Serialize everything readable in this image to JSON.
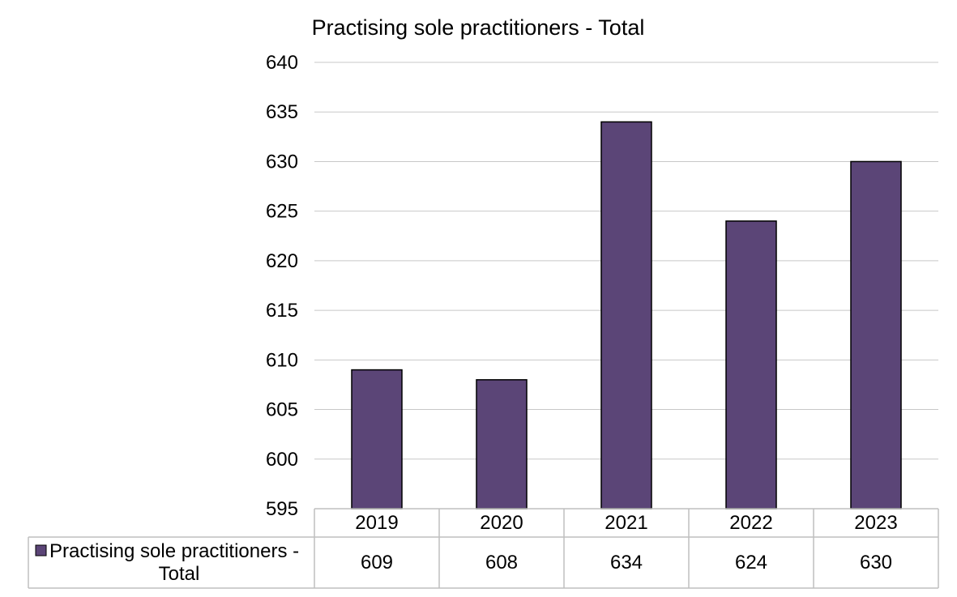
{
  "chart_data": {
    "type": "bar",
    "title": "Practising sole practitioners - Total",
    "categories": [
      "2019",
      "2020",
      "2021",
      "2022",
      "2023"
    ],
    "series": [
      {
        "name": "Practising sole practitioners - Total",
        "values": [
          609,
          608,
          634,
          624,
          630
        ],
        "color": "#5b4577"
      }
    ],
    "ylim": [
      595,
      640
    ],
    "yticks": [
      595,
      600,
      605,
      610,
      615,
      620,
      625,
      630,
      635,
      640
    ],
    "grid": true,
    "data_table": true,
    "colors": {
      "bar_fill": "#5b4577",
      "bar_stroke": "#000000",
      "grid": "#c8c8c8",
      "table_border": "#bfbfbf"
    }
  }
}
